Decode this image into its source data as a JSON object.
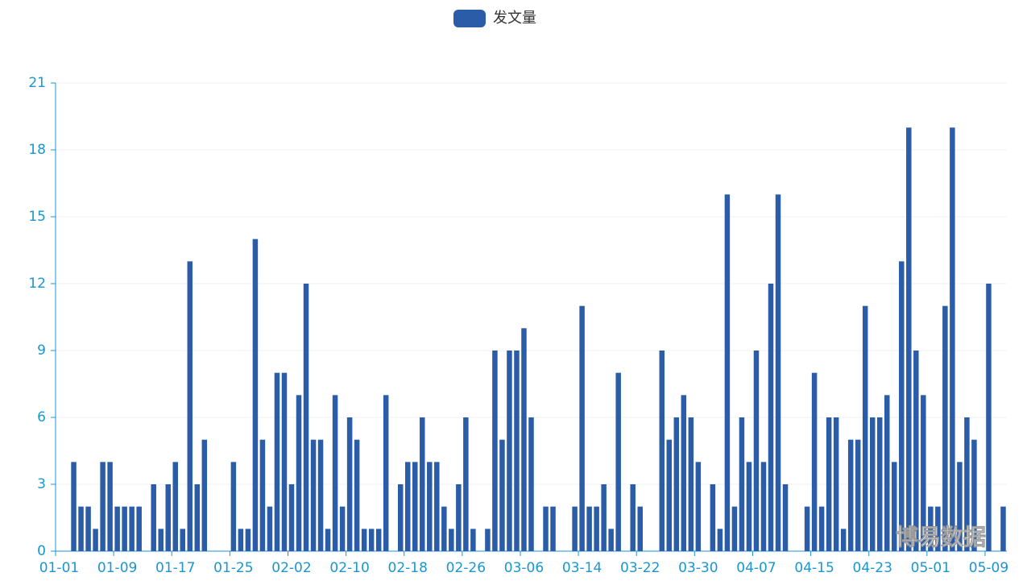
{
  "chart_data": {
    "type": "bar",
    "legend": "发文量",
    "watermark": "博易数据",
    "color": "#2a5ca8",
    "categories": [
      "01-01",
      null,
      null,
      null,
      null,
      null,
      null,
      null,
      "01-09",
      null,
      null,
      null,
      null,
      null,
      null,
      null,
      "01-17",
      null,
      null,
      null,
      null,
      null,
      null,
      null,
      "01-25",
      null,
      null,
      null,
      null,
      null,
      null,
      null,
      "02-02",
      null,
      null,
      null,
      null,
      null,
      null,
      null,
      "02-10",
      null,
      null,
      null,
      null,
      null,
      null,
      null,
      "02-18",
      null,
      null,
      null,
      null,
      null,
      null,
      null,
      "02-26",
      null,
      null,
      null,
      null,
      null,
      null,
      null,
      "03-06",
      null,
      null,
      null,
      null,
      null,
      null,
      null,
      "03-14",
      null,
      null,
      null,
      null,
      null,
      null,
      null,
      "03-22",
      null,
      null,
      null,
      null,
      null,
      null,
      null,
      "03-30",
      null,
      null,
      null,
      null,
      null,
      null,
      null,
      "04-07",
      null,
      null,
      null,
      null,
      null,
      null,
      null,
      "04-15",
      null,
      null,
      null,
      null,
      null,
      null,
      null,
      "04-23",
      null,
      null,
      null,
      null,
      null,
      null,
      null,
      "05-01",
      null,
      null,
      null,
      null,
      null,
      null,
      null,
      "05-09",
      null,
      null
    ],
    "values": [
      0,
      0,
      4,
      2,
      2,
      1,
      4,
      4,
      2,
      2,
      2,
      2,
      0,
      3,
      1,
      3,
      4,
      1,
      13,
      3,
      5,
      0,
      0,
      0,
      4,
      1,
      1,
      14,
      5,
      2,
      8,
      8,
      3,
      7,
      12,
      5,
      5,
      1,
      7,
      2,
      6,
      5,
      1,
      1,
      1,
      7,
      0,
      3,
      4,
      4,
      6,
      4,
      4,
      2,
      1,
      3,
      6,
      1,
      0,
      1,
      9,
      5,
      9,
      9,
      10,
      6,
      0,
      2,
      2,
      0,
      0,
      2,
      11,
      2,
      2,
      3,
      1,
      8,
      0,
      3,
      2,
      0,
      0,
      9,
      5,
      6,
      7,
      6,
      4,
      0,
      3,
      1,
      16,
      2,
      6,
      4,
      9,
      4,
      12,
      16,
      3,
      0,
      0,
      2,
      8,
      2,
      6,
      6,
      1,
      5,
      5,
      11,
      6,
      6,
      7,
      4,
      13,
      19,
      9,
      7,
      2,
      2,
      11,
      19,
      4,
      6,
      5,
      0,
      12,
      0,
      2
    ],
    "ylim": [
      0,
      21
    ],
    "yticks": [
      0,
      3,
      6,
      9,
      12,
      15,
      18,
      21
    ],
    "grid": true
  }
}
